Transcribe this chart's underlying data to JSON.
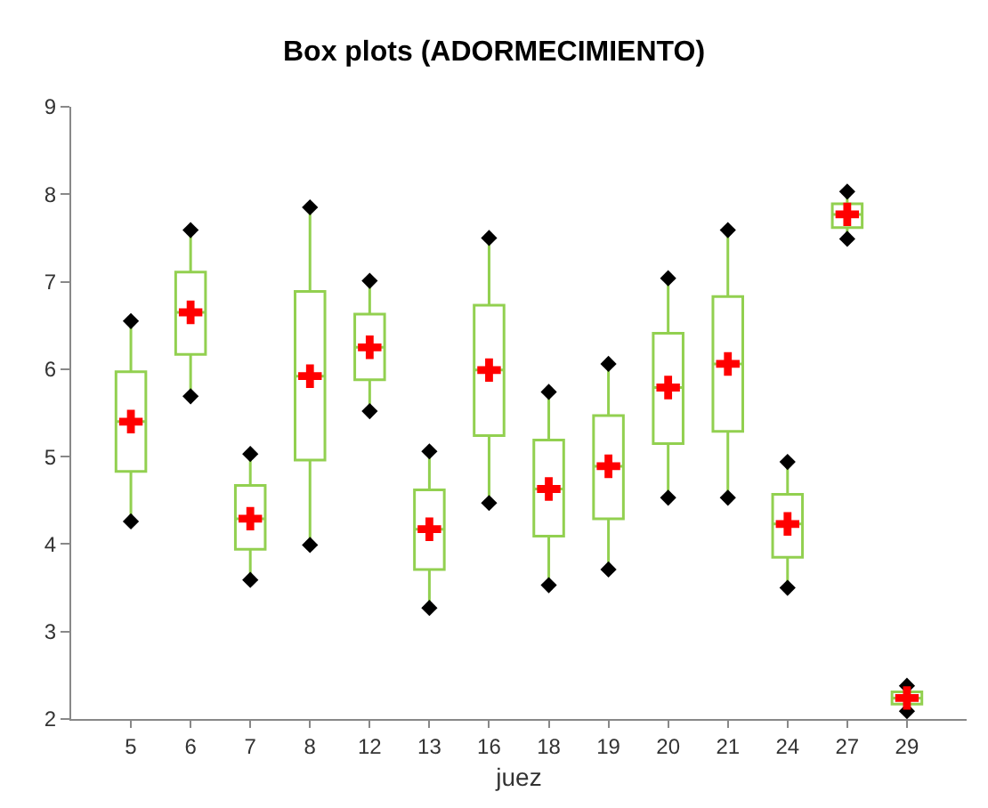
{
  "chart_data": {
    "type": "box",
    "title": "Box plots (ADORMECIMIENTO)",
    "xlabel": "juez",
    "categories": [
      "5",
      "6",
      "7",
      "8",
      "12",
      "13",
      "16",
      "18",
      "19",
      "20",
      "21",
      "24",
      "27",
      "29"
    ],
    "series": [
      {
        "color": "#92d050",
        "boxes": [
          {
            "low": 4.26,
            "q1": 4.83,
            "median": 5.4,
            "q3": 5.97,
            "high": 6.55
          },
          {
            "low": 5.69,
            "q1": 6.17,
            "median": 6.65,
            "q3": 7.11,
            "high": 7.59
          },
          {
            "low": 3.59,
            "q1": 3.94,
            "median": 4.29,
            "q3": 4.67,
            "high": 5.03
          },
          {
            "low": 3.99,
            "q1": 4.96,
            "median": 5.92,
            "q3": 6.89,
            "high": 7.85
          },
          {
            "low": 5.52,
            "q1": 5.88,
            "median": 6.25,
            "q3": 6.63,
            "high": 7.01
          },
          {
            "low": 3.27,
            "q1": 3.71,
            "median": 4.17,
            "q3": 4.62,
            "high": 5.06
          },
          {
            "low": 4.47,
            "q1": 5.24,
            "median": 5.99,
            "q3": 6.73,
            "high": 7.5
          },
          {
            "low": 3.53,
            "q1": 4.09,
            "median": 4.63,
            "q3": 5.19,
            "high": 5.74
          },
          {
            "low": 3.71,
            "q1": 4.29,
            "median": 4.89,
            "q3": 5.47,
            "high": 6.06
          },
          {
            "low": 4.53,
            "q1": 5.15,
            "median": 5.79,
            "q3": 6.41,
            "high": 7.04
          },
          {
            "low": 4.53,
            "q1": 5.29,
            "median": 6.06,
            "q3": 6.83,
            "high": 7.59
          },
          {
            "low": 3.5,
            "q1": 3.85,
            "median": 4.23,
            "q3": 4.57,
            "high": 4.94
          },
          {
            "low": 7.49,
            "q1": 7.62,
            "median": 7.77,
            "q3": 7.89,
            "high": 8.03
          },
          {
            "low": 2.09,
            "q1": 2.17,
            "median": 2.24,
            "q3": 2.31,
            "high": 2.38
          }
        ]
      },
      {
        "type": "scatter",
        "color": "#000000",
        "marker": "diamond",
        "x": [
          "5",
          "6",
          "7",
          "8",
          "12",
          "13",
          "16",
          "18",
          "19",
          "20",
          "21",
          "24",
          "27",
          "29"
        ],
        "values": [
          4.26,
          5.69,
          3.59,
          3.99,
          5.52,
          3.27,
          4.47,
          3.53,
          3.71,
          4.53,
          4.53,
          3.5,
          7.49,
          2.09
        ]
      },
      {
        "type": "scatter",
        "color": "#000000",
        "marker": "diamond",
        "x": [
          "5",
          "6",
          "7",
          "8",
          "12",
          "13",
          "16",
          "18",
          "19",
          "20",
          "21",
          "24",
          "27",
          "29"
        ],
        "values": [
          6.55,
          7.59,
          5.03,
          7.85,
          7.01,
          5.06,
          7.5,
          5.74,
          6.06,
          7.04,
          7.59,
          4.94,
          8.03,
          2.38
        ]
      },
      {
        "type": "scatter",
        "color": "#ff0000",
        "marker": "cross",
        "x": [
          "5",
          "6",
          "7",
          "8",
          "12",
          "13",
          "16",
          "18",
          "19",
          "20",
          "21",
          "24",
          "27",
          "29"
        ],
        "values": [
          5.4,
          6.65,
          4.29,
          5.92,
          6.25,
          4.17,
          5.99,
          4.63,
          4.89,
          5.79,
          6.06,
          4.23,
          7.77,
          2.24
        ]
      }
    ],
    "ylim": [
      2,
      9
    ],
    "yticks": [
      2,
      3,
      4,
      5,
      6,
      7,
      8,
      9
    ]
  }
}
